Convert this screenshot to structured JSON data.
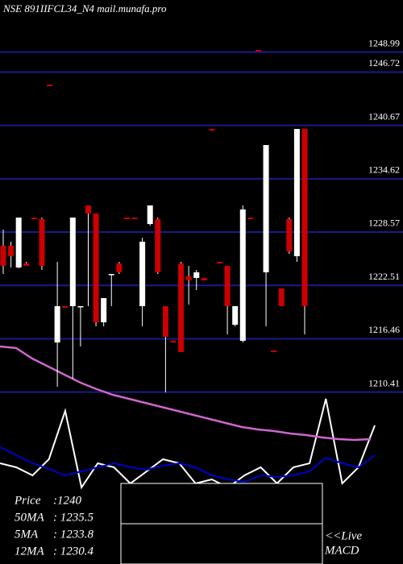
{
  "chart_data": {
    "type": "candlestick",
    "title": "NSE 891IIFCL34_N4 mail.munafa.pro",
    "ylim": [
      1190.9,
      1254.9
    ],
    "yticks": [
      1248.99,
      1246.72,
      1240.67,
      1234.62,
      1228.57,
      1222.51,
      1216.46,
      1210.41
    ],
    "up_color": "#ffffff",
    "down_color": "#cc0000",
    "grid_color": "#1a1a8c",
    "candles": [
      [
        1227.01,
        1228.84,
        1223.81,
        1224.73
      ],
      [
        1227.01,
        1227.47,
        1224.55,
        1225.83
      ],
      [
        1224.55,
        1230.21,
        1224.45,
        1230.21
      ],
      [
        1225.0,
        1225.19,
        1224.73,
        1224.73
      ],
      [
        1230.21,
        1230.21,
        1230.03,
        1230.03
      ],
      [
        1230.03,
        1230.21,
        1224.27,
        1224.73
      ],
      [
        1245.3,
        1245.3,
        1245.12,
        1245.12
      ],
      [
        1216.04,
        1225.19,
        1211.01,
        1220.16
      ],
      [
        1220.16,
        1220.16,
        1219.97,
        1219.97
      ],
      [
        1220.16,
        1230.21,
        1211.93,
        1230.21
      ],
      [
        1220.16,
        1220.16,
        1215.59,
        1220.16
      ],
      [
        1231.59,
        1231.59,
        1220.16,
        1230.67
      ],
      [
        1230.67,
        1230.67,
        1217.87,
        1218.33
      ],
      [
        1218.33,
        1221.07,
        1217.87,
        1221.07
      ],
      [
        1223.81,
        1223.81,
        1220.16,
        1223.81
      ],
      [
        1225.0,
        1225.19,
        1223.81,
        1224.0
      ],
      [
        1230.21,
        1230.21,
        1230.03,
        1230.03
      ],
      [
        1230.21,
        1230.21,
        1230.03,
        1230.03
      ],
      [
        1220.16,
        1227.93,
        1217.87,
        1227.47
      ],
      [
        1229.48,
        1231.59,
        1229.3,
        1231.59
      ],
      [
        1230.03,
        1230.21,
        1223.81,
        1224.0
      ],
      [
        1220.16,
        1220.16,
        1210.37,
        1216.68
      ],
      [
        1216.23,
        1216.23,
        1216.04,
        1216.04
      ],
      [
        1225.0,
        1225.19,
        1214.95,
        1214.95
      ],
      [
        1223.54,
        1224.73,
        1220.34,
        1223.08
      ],
      [
        1223.36,
        1224.27,
        1221.99,
        1224.0
      ],
      [
        1223.36,
        1223.36,
        1223.08,
        1223.08
      ],
      [
        1240.27,
        1240.27,
        1240.09,
        1240.09
      ],
      [
        1225.19,
        1225.19,
        1225.0,
        1225.0
      ],
      [
        1224.73,
        1224.73,
        1216.96,
        1220.16
      ],
      [
        1218.05,
        1220.16,
        1217.87,
        1220.16
      ],
      [
        1216.23,
        1231.59,
        1216.04,
        1231.13
      ],
      [
        1230.21,
        1230.21,
        1230.03,
        1230.03
      ],
      [
        1249.23,
        1249.23,
        1249.05,
        1249.05
      ],
      [
        1224.0,
        1238.44,
        1217.87,
        1238.44
      ],
      [
        1215.13,
        1215.13,
        1214.95,
        1214.95
      ],
      [
        1222.17,
        1222.17,
        1220.16,
        1220.16
      ],
      [
        1230.03,
        1230.21,
        1226.1,
        1226.37
      ],
      [
        1225.83,
        1240.27,
        1225.19,
        1240.27
      ],
      [
        1240.27,
        1240.27,
        1216.96,
        1220.16
      ]
    ],
    "ma": {
      "color": "#cc66cc",
      "values": [
        1215.59,
        1215.4,
        1214.21,
        1213.3,
        1212.39,
        1211.47,
        1210.74,
        1210.1,
        1209.64,
        1209.19,
        1208.73,
        1208.27,
        1207.81,
        1207.36,
        1206.9,
        1206.44,
        1206.17,
        1205.99,
        1205.71,
        1205.53,
        1205.25,
        1205.07,
        1204.98,
        1205.07
      ]
    },
    "indicator": {
      "ylim": [
        0,
        220
      ],
      "series": [
        {
          "color": "#ffffff",
          "values": [
            125,
            120,
            110,
            130,
            190,
            95,
            125,
            120,
            100,
            115,
            130,
            125,
            100,
            105,
            95,
            110,
            120,
            100,
            120,
            125,
            205,
            100,
            120,
            172
          ]
        },
        {
          "color": "#0000cc",
          "values": [
            145,
            135,
            125,
            118,
            110,
            115,
            120,
            125,
            120,
            117,
            122,
            125,
            120,
            110,
            105,
            102,
            110,
            108,
            110,
            115,
            132,
            125,
            120,
            135
          ]
        }
      ]
    },
    "info": [
      {
        "label": "Price",
        "value": ":1240"
      },
      {
        "label": "50MA",
        "value": ": 1235.5"
      },
      {
        "label": "5MA",
        "value": ": 1233.8"
      },
      {
        "label": "12MA",
        "value": ": 1230.4"
      }
    ],
    "macd_label": [
      "<<Live",
      "MACD"
    ]
  }
}
